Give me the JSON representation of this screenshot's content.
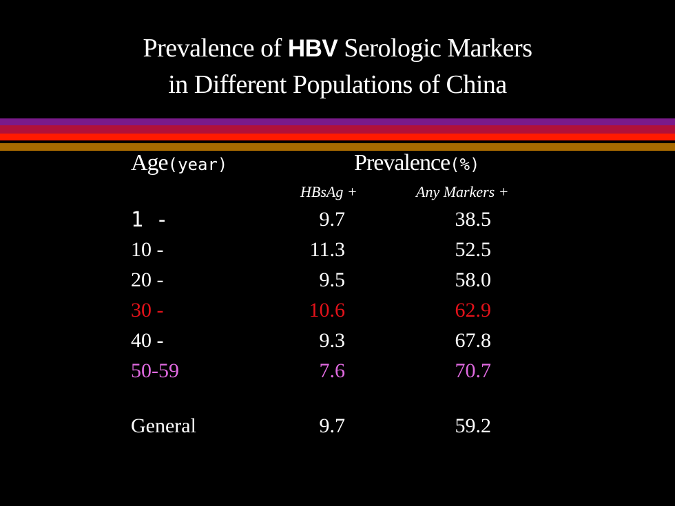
{
  "title": {
    "line1_pre": "Prevalence of ",
    "line1_bold": "HBV",
    "line1_post": " Serologic Markers",
    "line2": "in Different Populations of China"
  },
  "stripes": [
    {
      "color": "#7a1a8a"
    },
    {
      "color": "#b0103a"
    },
    {
      "color": "#ff1a00"
    },
    {
      "color": "#000000"
    },
    {
      "color": "#a86a00"
    }
  ],
  "header": {
    "age_label": "Age",
    "age_unit": "(year)",
    "prevalence_label": "Prevalence",
    "prevalence_unit": "(%)",
    "hbsag_label": "HBsAg +",
    "any_label": "Any Markers +"
  },
  "rows": [
    {
      "age": "1 -",
      "hbsag": "9.7",
      "any": "38.5",
      "color": "#ffffff"
    },
    {
      "age": "10 -",
      "hbsag": "11.3",
      "any": "52.5",
      "color": "#ffffff"
    },
    {
      "age": "20 -",
      "hbsag": "9.5",
      "any": "58.0",
      "color": "#ffffff"
    },
    {
      "age": "30 -",
      "hbsag": "10.6",
      "any": "62.9",
      "color": "#e3121a"
    },
    {
      "age": "40 -",
      "hbsag": "9.3",
      "any": "67.8",
      "color": "#ffffff"
    },
    {
      "age": "50-59",
      "hbsag": "7.6",
      "any": "70.7",
      "color": "#e06ae0"
    }
  ],
  "general": {
    "label": "General",
    "hbsag": "9.7",
    "any": "59.2"
  }
}
